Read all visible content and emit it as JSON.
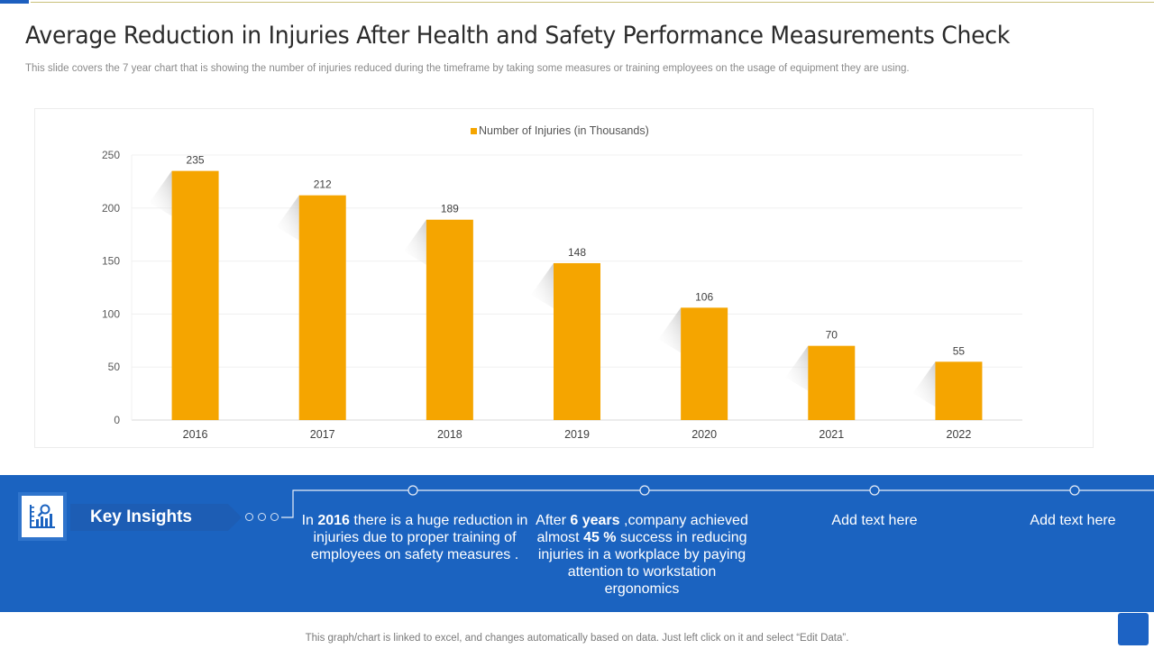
{
  "header": {
    "title": "Average Reduction in Injuries After Health and Safety Performance Measurements Check",
    "subtitle": "This slide covers the 7 year chart that is showing the number of injuries reduced during the timeframe by taking some measures or training employees on the usage of equipment they are using."
  },
  "chart_data": {
    "type": "bar",
    "title": "",
    "legend": [
      "Number of Injuries (in Thousands)"
    ],
    "legend_position": "top",
    "categories": [
      "2016",
      "2017",
      "2018",
      "2019",
      "2020",
      "2021",
      "2022"
    ],
    "series": [
      {
        "name": "Number of Injuries (in Thousands)",
        "values": [
          235,
          212,
          189,
          148,
          106,
          70,
          55
        ],
        "color": "#f5a500"
      }
    ],
    "yticks": [
      0,
      50,
      100,
      150,
      200,
      250
    ],
    "ylim": [
      0,
      250
    ],
    "xlabel": "",
    "ylabel": "",
    "grid": true,
    "data_labels": true
  },
  "insights": {
    "label": "Key Insights",
    "icon": "chart-analysis-icon",
    "items": [
      {
        "parts": [
          {
            "t": "In ",
            "b": false
          },
          {
            "t": "2016",
            "b": true
          },
          {
            "t": " there is a huge reduction in injuries due to proper training of employees on safety measures .",
            "b": false
          }
        ]
      },
      {
        "parts": [
          {
            "t": "After ",
            "b": false
          },
          {
            "t": "6 years",
            "b": true
          },
          {
            "t": " ,company achieved almost ",
            "b": false
          },
          {
            "t": "45 %",
            "b": true
          },
          {
            "t": " success in reducing injuries in a workplace by paying attention to workstation ergonomics",
            "b": false
          }
        ]
      },
      {
        "parts": [
          {
            "t": "Add text here",
            "b": false
          }
        ]
      },
      {
        "parts": [
          {
            "t": "Add text here",
            "b": false
          }
        ]
      }
    ]
  },
  "footer": {
    "note": "This graph/chart is linked to excel, and changes automatically based on data. Just left click on it and select “Edit Data”."
  },
  "colors": {
    "accent": "#1b63c0",
    "bar": "#f5a500"
  }
}
